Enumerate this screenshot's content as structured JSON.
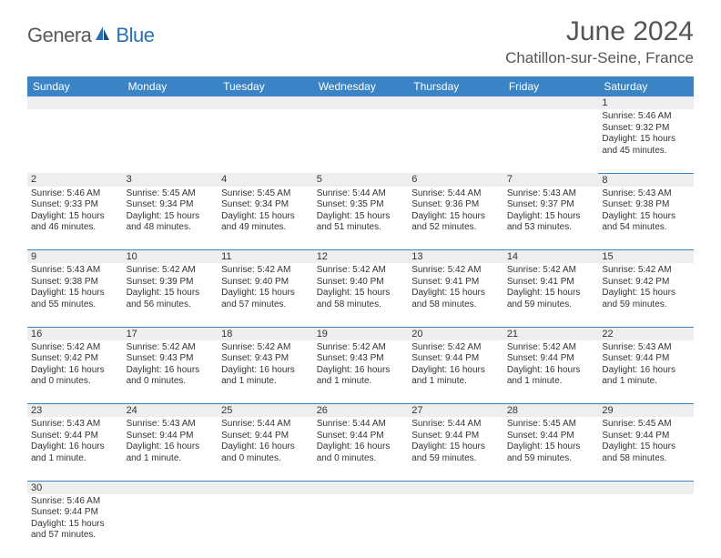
{
  "branding": {
    "text_general": "Genera",
    "text_blue": "Blue",
    "logo_colors": {
      "primary": "#2a6fb5",
      "secondary": "#1a4f85"
    }
  },
  "header": {
    "month_title": "June 2024",
    "location": "Chatillon-sur-Seine, France"
  },
  "styling": {
    "header_bg": "#3a83c5",
    "header_text": "#ffffff",
    "daynum_bg": "#eeeeee",
    "row_border": "#3a83c5",
    "body_text": "#333333",
    "title_color": "#555555",
    "month_fontsize": 30,
    "location_fontsize": 17,
    "dayhead_fontsize": 12,
    "cell_fontsize": 10
  },
  "day_headers": [
    "Sunday",
    "Monday",
    "Tuesday",
    "Wednesday",
    "Thursday",
    "Friday",
    "Saturday"
  ],
  "weeks": [
    [
      null,
      null,
      null,
      null,
      null,
      null,
      {
        "n": "1",
        "sr": "Sunrise: 5:46 AM",
        "ss": "Sunset: 9:32 PM",
        "d1": "Daylight: 15 hours",
        "d2": "and 45 minutes."
      }
    ],
    [
      {
        "n": "2",
        "sr": "Sunrise: 5:46 AM",
        "ss": "Sunset: 9:33 PM",
        "d1": "Daylight: 15 hours",
        "d2": "and 46 minutes."
      },
      {
        "n": "3",
        "sr": "Sunrise: 5:45 AM",
        "ss": "Sunset: 9:34 PM",
        "d1": "Daylight: 15 hours",
        "d2": "and 48 minutes."
      },
      {
        "n": "4",
        "sr": "Sunrise: 5:45 AM",
        "ss": "Sunset: 9:34 PM",
        "d1": "Daylight: 15 hours",
        "d2": "and 49 minutes."
      },
      {
        "n": "5",
        "sr": "Sunrise: 5:44 AM",
        "ss": "Sunset: 9:35 PM",
        "d1": "Daylight: 15 hours",
        "d2": "and 51 minutes."
      },
      {
        "n": "6",
        "sr": "Sunrise: 5:44 AM",
        "ss": "Sunset: 9:36 PM",
        "d1": "Daylight: 15 hours",
        "d2": "and 52 minutes."
      },
      {
        "n": "7",
        "sr": "Sunrise: 5:43 AM",
        "ss": "Sunset: 9:37 PM",
        "d1": "Daylight: 15 hours",
        "d2": "and 53 minutes."
      },
      {
        "n": "8",
        "sr": "Sunrise: 5:43 AM",
        "ss": "Sunset: 9:38 PM",
        "d1": "Daylight: 15 hours",
        "d2": "and 54 minutes."
      }
    ],
    [
      {
        "n": "9",
        "sr": "Sunrise: 5:43 AM",
        "ss": "Sunset: 9:38 PM",
        "d1": "Daylight: 15 hours",
        "d2": "and 55 minutes."
      },
      {
        "n": "10",
        "sr": "Sunrise: 5:42 AM",
        "ss": "Sunset: 9:39 PM",
        "d1": "Daylight: 15 hours",
        "d2": "and 56 minutes."
      },
      {
        "n": "11",
        "sr": "Sunrise: 5:42 AM",
        "ss": "Sunset: 9:40 PM",
        "d1": "Daylight: 15 hours",
        "d2": "and 57 minutes."
      },
      {
        "n": "12",
        "sr": "Sunrise: 5:42 AM",
        "ss": "Sunset: 9:40 PM",
        "d1": "Daylight: 15 hours",
        "d2": "and 58 minutes."
      },
      {
        "n": "13",
        "sr": "Sunrise: 5:42 AM",
        "ss": "Sunset: 9:41 PM",
        "d1": "Daylight: 15 hours",
        "d2": "and 58 minutes."
      },
      {
        "n": "14",
        "sr": "Sunrise: 5:42 AM",
        "ss": "Sunset: 9:41 PM",
        "d1": "Daylight: 15 hours",
        "d2": "and 59 minutes."
      },
      {
        "n": "15",
        "sr": "Sunrise: 5:42 AM",
        "ss": "Sunset: 9:42 PM",
        "d1": "Daylight: 15 hours",
        "d2": "and 59 minutes."
      }
    ],
    [
      {
        "n": "16",
        "sr": "Sunrise: 5:42 AM",
        "ss": "Sunset: 9:42 PM",
        "d1": "Daylight: 16 hours",
        "d2": "and 0 minutes."
      },
      {
        "n": "17",
        "sr": "Sunrise: 5:42 AM",
        "ss": "Sunset: 9:43 PM",
        "d1": "Daylight: 16 hours",
        "d2": "and 0 minutes."
      },
      {
        "n": "18",
        "sr": "Sunrise: 5:42 AM",
        "ss": "Sunset: 9:43 PM",
        "d1": "Daylight: 16 hours",
        "d2": "and 1 minute."
      },
      {
        "n": "19",
        "sr": "Sunrise: 5:42 AM",
        "ss": "Sunset: 9:43 PM",
        "d1": "Daylight: 16 hours",
        "d2": "and 1 minute."
      },
      {
        "n": "20",
        "sr": "Sunrise: 5:42 AM",
        "ss": "Sunset: 9:44 PM",
        "d1": "Daylight: 16 hours",
        "d2": "and 1 minute."
      },
      {
        "n": "21",
        "sr": "Sunrise: 5:42 AM",
        "ss": "Sunset: 9:44 PM",
        "d1": "Daylight: 16 hours",
        "d2": "and 1 minute."
      },
      {
        "n": "22",
        "sr": "Sunrise: 5:43 AM",
        "ss": "Sunset: 9:44 PM",
        "d1": "Daylight: 16 hours",
        "d2": "and 1 minute."
      }
    ],
    [
      {
        "n": "23",
        "sr": "Sunrise: 5:43 AM",
        "ss": "Sunset: 9:44 PM",
        "d1": "Daylight: 16 hours",
        "d2": "and 1 minute."
      },
      {
        "n": "24",
        "sr": "Sunrise: 5:43 AM",
        "ss": "Sunset: 9:44 PM",
        "d1": "Daylight: 16 hours",
        "d2": "and 1 minute."
      },
      {
        "n": "25",
        "sr": "Sunrise: 5:44 AM",
        "ss": "Sunset: 9:44 PM",
        "d1": "Daylight: 16 hours",
        "d2": "and 0 minutes."
      },
      {
        "n": "26",
        "sr": "Sunrise: 5:44 AM",
        "ss": "Sunset: 9:44 PM",
        "d1": "Daylight: 16 hours",
        "d2": "and 0 minutes."
      },
      {
        "n": "27",
        "sr": "Sunrise: 5:44 AM",
        "ss": "Sunset: 9:44 PM",
        "d1": "Daylight: 15 hours",
        "d2": "and 59 minutes."
      },
      {
        "n": "28",
        "sr": "Sunrise: 5:45 AM",
        "ss": "Sunset: 9:44 PM",
        "d1": "Daylight: 15 hours",
        "d2": "and 59 minutes."
      },
      {
        "n": "29",
        "sr": "Sunrise: 5:45 AM",
        "ss": "Sunset: 9:44 PM",
        "d1": "Daylight: 15 hours",
        "d2": "and 58 minutes."
      }
    ],
    [
      {
        "n": "30",
        "sr": "Sunrise: 5:46 AM",
        "ss": "Sunset: 9:44 PM",
        "d1": "Daylight: 15 hours",
        "d2": "and 57 minutes."
      },
      null,
      null,
      null,
      null,
      null,
      null
    ]
  ]
}
